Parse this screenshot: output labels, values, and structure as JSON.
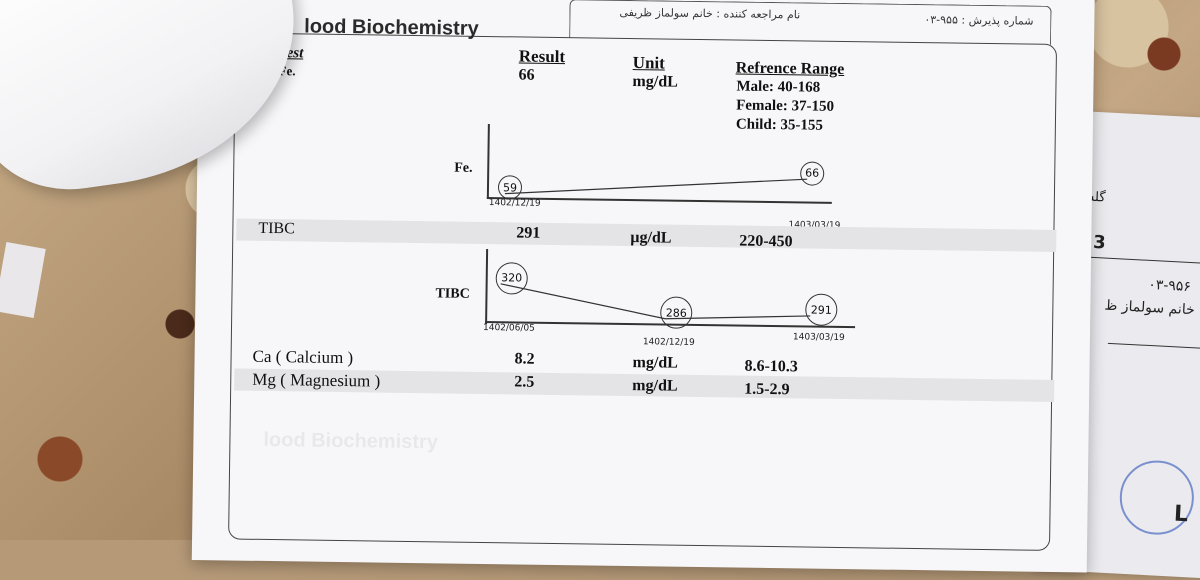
{
  "header": {
    "patient_label": "نام مراجعه کننده : خانم سولماز ظریفی",
    "reception_label": "شماره پذیرش : ۹۵۵-۰۳",
    "section_title": "lood Biochemistry"
  },
  "columns": {
    "test": "Test",
    "result": "Result",
    "unit": "Unit",
    "range": "Refrence Range"
  },
  "rows": [
    {
      "test": "Fe.",
      "result": "66",
      "unit": "mg/dL",
      "range_lines": [
        "Male: 40-168",
        "Female: 37-150",
        "Child: 35-155"
      ]
    },
    {
      "test": "TIBC",
      "result": "291",
      "unit": "µg/dL",
      "range": "220-450"
    },
    {
      "test": "Ca ( Calcium )",
      "result": "8.2",
      "unit": "mg/dL",
      "range": "8.6-10.3"
    },
    {
      "test": "Mg ( Magnesium )",
      "result": "2.5",
      "unit": "mg/dL",
      "range": "1.5-2.9"
    }
  ],
  "chart_data": [
    {
      "type": "line",
      "ylabel": "Fe.",
      "x": [
        "1402/12/19",
        "1403/03/19"
      ],
      "series": [
        {
          "values": [
            59,
            66
          ]
        }
      ]
    },
    {
      "type": "line",
      "ylabel": "TIBC",
      "x": [
        "1402/06/05",
        "1402/12/19",
        "1403/03/19"
      ],
      "series": [
        {
          "values": [
            320,
            286,
            291
          ]
        }
      ]
    }
  ],
  "right_sheet": {
    "word1": "گلسته",
    "num": "3",
    "code": "۰۳-۹۵۶",
    "name": "خانم سولماز ظ",
    "seal": "L"
  }
}
